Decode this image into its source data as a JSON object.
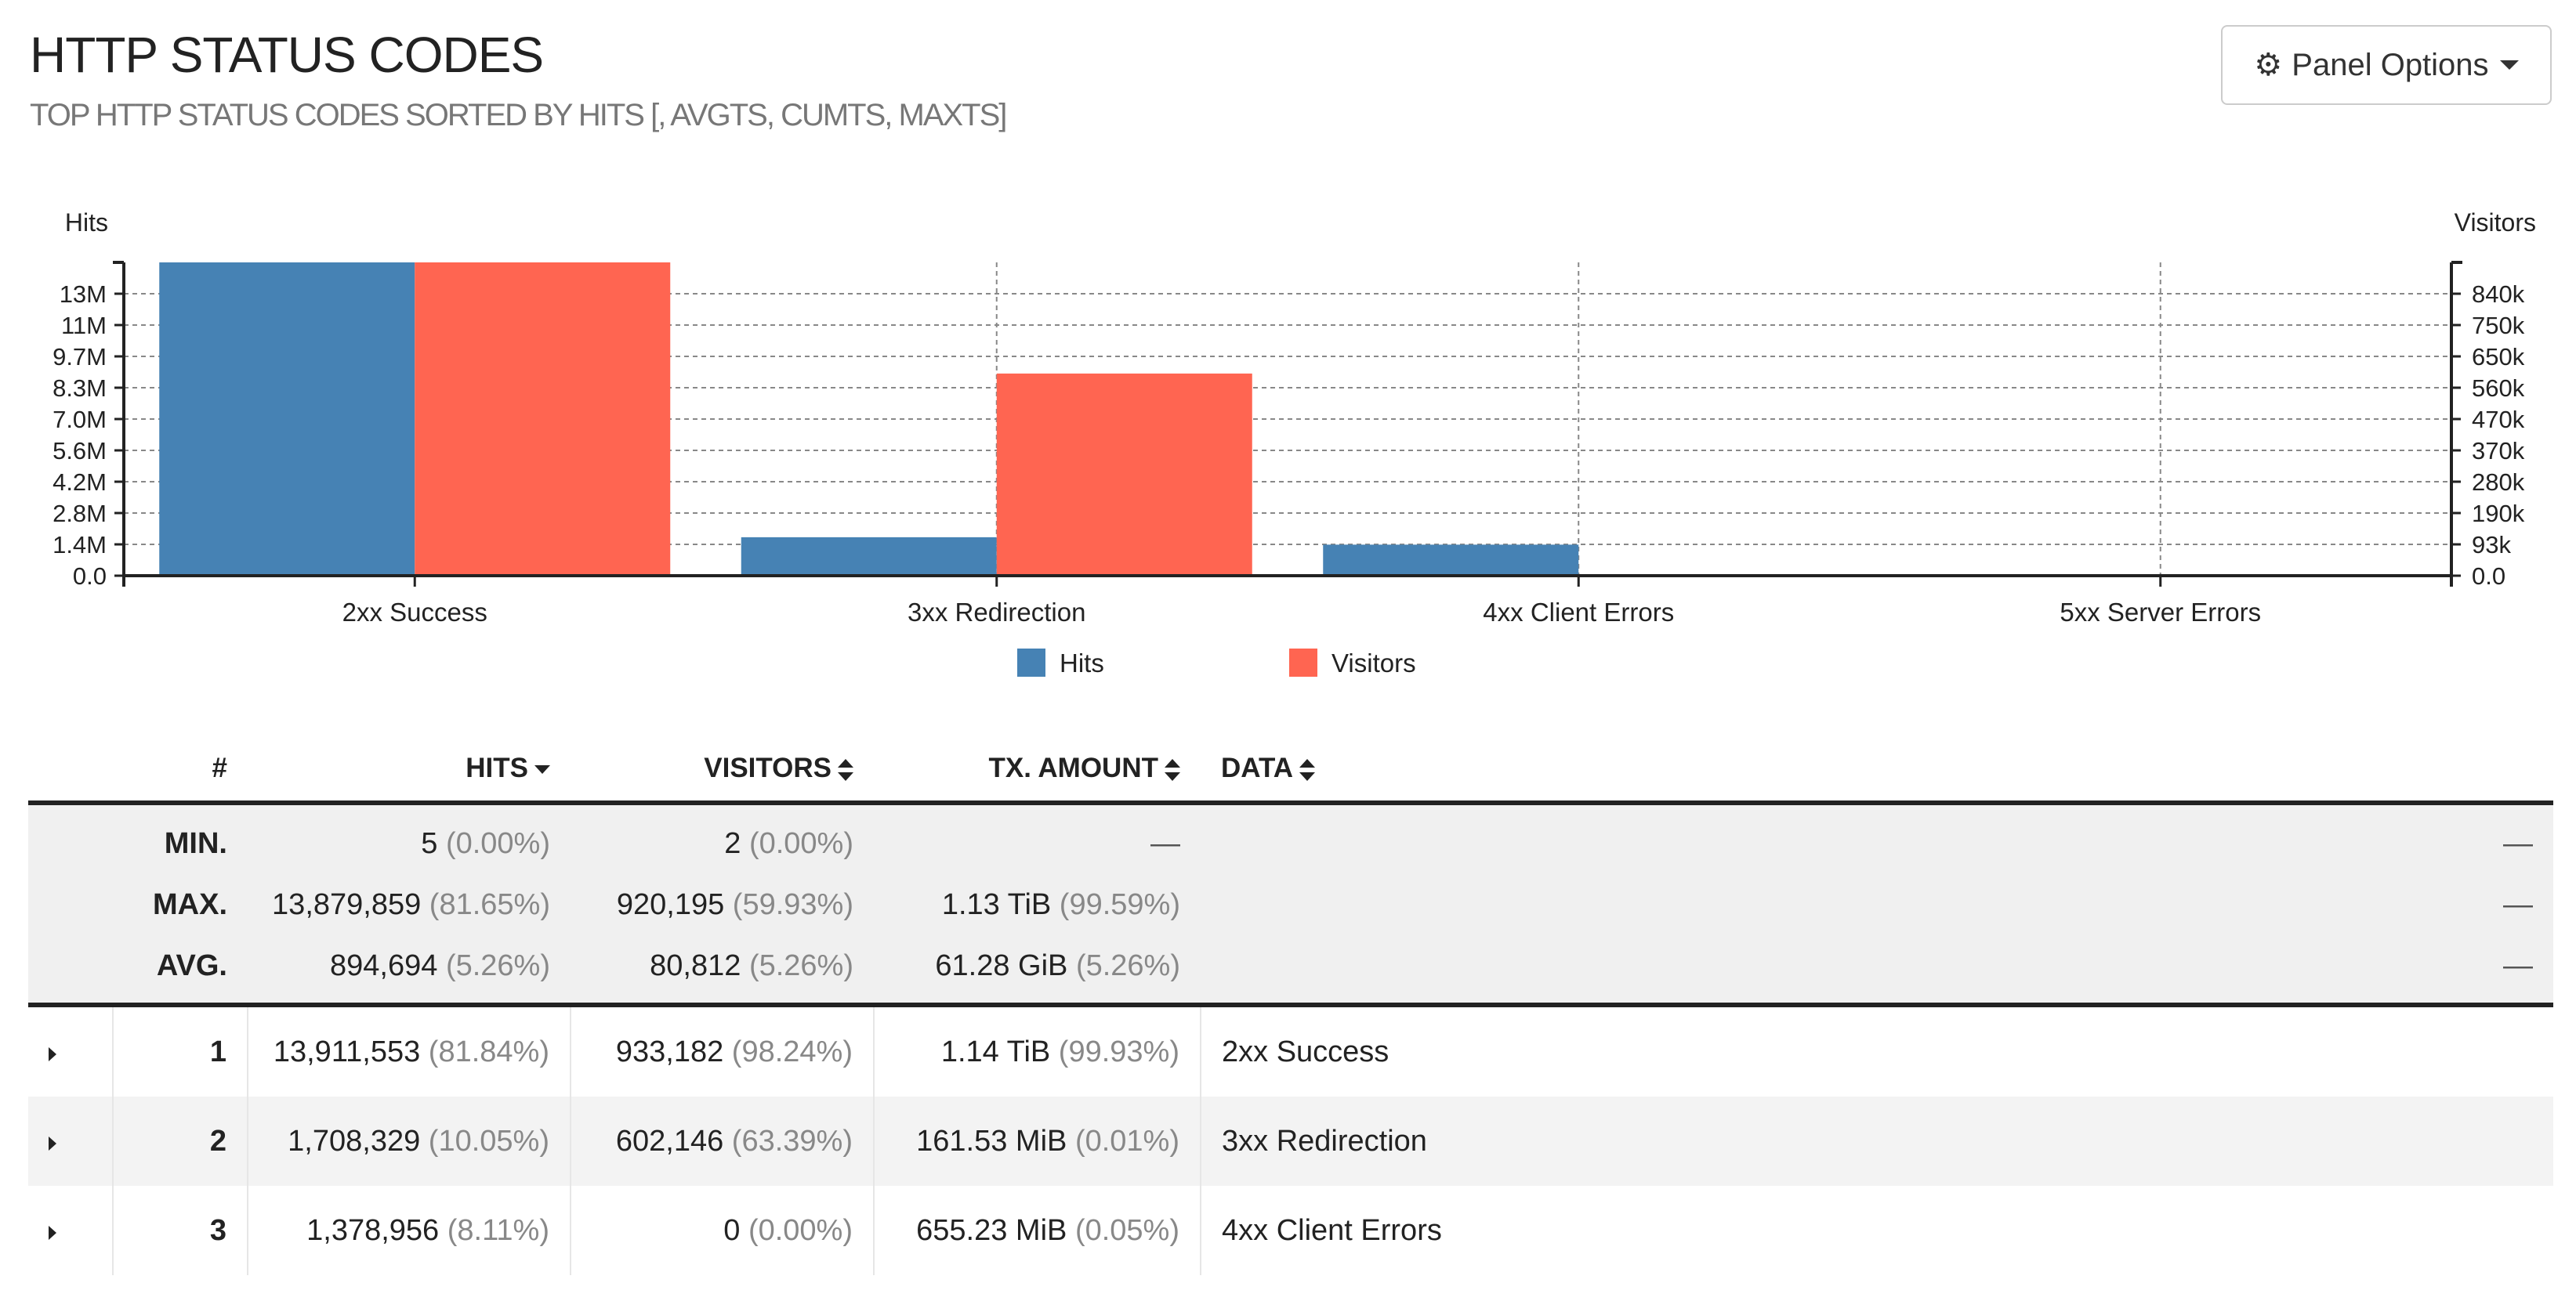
{
  "panel": {
    "title": "HTTP STATUS CODES",
    "subtitle": "TOP HTTP STATUS CODES SORTED BY HITS [, AVGTS, CUMTS, MAXTS]",
    "options_label": "Panel Options"
  },
  "chart_data": {
    "type": "bar",
    "categories": [
      "2xx Success",
      "3xx Redirection",
      "4xx Client Errors",
      "5xx Server Errors"
    ],
    "series": [
      {
        "name": "Hits",
        "axis": "left",
        "values": [
          13911553,
          1708329,
          1378956,
          0
        ],
        "color": "#4682b4"
      },
      {
        "name": "Visitors",
        "axis": "right",
        "values": [
          933182,
          602146,
          0,
          0
        ],
        "color": "#ff6551"
      }
    ],
    "left_axis": {
      "label": "Hits",
      "ylim": [
        0,
        13911553
      ],
      "ticks": [
        {
          "value": 0,
          "label": "0.0"
        },
        {
          "value": 1391155,
          "label": "1.4M"
        },
        {
          "value": 2782311,
          "label": "2.8M"
        },
        {
          "value": 4173466,
          "label": "4.2M"
        },
        {
          "value": 5564621,
          "label": "5.6M"
        },
        {
          "value": 6955777,
          "label": "7.0M"
        },
        {
          "value": 8346932,
          "label": "8.3M"
        },
        {
          "value": 9738087,
          "label": "9.7M"
        },
        {
          "value": 11129242,
          "label": "11M"
        },
        {
          "value": 12520398,
          "label": "13M"
        }
      ]
    },
    "right_axis": {
      "label": "Visitors",
      "ylim": [
        0,
        933182
      ],
      "ticks": [
        {
          "value": 0,
          "label": "0.0"
        },
        {
          "value": 93318,
          "label": "93k"
        },
        {
          "value": 186636,
          "label": "190k"
        },
        {
          "value": 279955,
          "label": "280k"
        },
        {
          "value": 373273,
          "label": "370k"
        },
        {
          "value": 466591,
          "label": "470k"
        },
        {
          "value": 559909,
          "label": "560k"
        },
        {
          "value": 653227,
          "label": "650k"
        },
        {
          "value": 746546,
          "label": "750k"
        },
        {
          "value": 839864,
          "label": "840k"
        }
      ]
    },
    "grid": true,
    "legend": [
      "Hits",
      "Visitors"
    ],
    "legend_position": "bottom-center"
  },
  "table": {
    "headers": {
      "rank": "#",
      "hits": "HITS",
      "visitors": "VISITORS",
      "tx": "TX. AMOUNT",
      "data": "DATA"
    },
    "stats": [
      {
        "label": "MIN.",
        "hits": "5",
        "hits_pct": "(0.00%)",
        "visitors": "2",
        "visitors_pct": "(0.00%)",
        "tx": "—",
        "tx_pct": "",
        "data": "—"
      },
      {
        "label": "MAX.",
        "hits": "13,879,859",
        "hits_pct": "(81.65%)",
        "visitors": "920,195",
        "visitors_pct": "(59.93%)",
        "tx": "1.13 TiB",
        "tx_pct": "(99.59%)",
        "data": "—"
      },
      {
        "label": "AVG.",
        "hits": "894,694",
        "hits_pct": "(5.26%)",
        "visitors": "80,812",
        "visitors_pct": "(5.26%)",
        "tx": "61.28 GiB",
        "tx_pct": "(5.26%)",
        "data": "—"
      }
    ],
    "rows": [
      {
        "rank": "1",
        "hits": "13,911,553",
        "hits_pct": "(81.84%)",
        "visitors": "933,182",
        "visitors_pct": "(98.24%)",
        "tx": "1.14 TiB",
        "tx_pct": "(99.93%)",
        "data": "2xx Success"
      },
      {
        "rank": "2",
        "hits": "1,708,329",
        "hits_pct": "(10.05%)",
        "visitors": "602,146",
        "visitors_pct": "(63.39%)",
        "tx": "161.53 MiB",
        "tx_pct": "(0.01%)",
        "data": "3xx Redirection"
      },
      {
        "rank": "3",
        "hits": "1,378,956",
        "hits_pct": "(8.11%)",
        "visitors": "0",
        "visitors_pct": "(0.00%)",
        "tx": "655.23 MiB",
        "tx_pct": "(0.05%)",
        "data": "4xx Client Errors"
      }
    ]
  }
}
